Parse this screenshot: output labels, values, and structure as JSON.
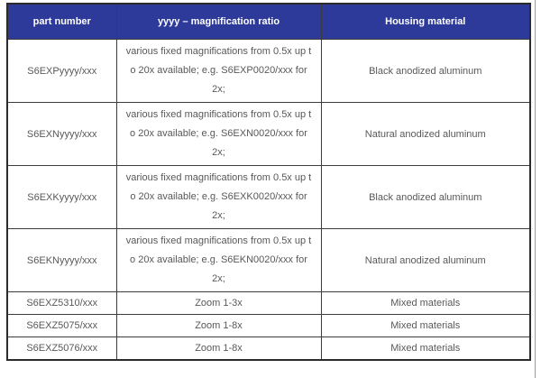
{
  "colors": {
    "header_bg": "#2e3a9a",
    "header_text": "#ffffff",
    "body_text": "#58585a",
    "border": "#3c3c3c"
  },
  "table": {
    "headers": {
      "part_number": "part number",
      "magnification": "yyyy – magnification ratio",
      "material": "Housing material"
    },
    "rows": [
      {
        "part": "S6EXPyyyy/xxx",
        "magnification": "various fixed magnifications from 0.5x up t\no 20x available;  e.g. S6EXP0020/xxx for\n2x;",
        "material": "Black anodized aluminum"
      },
      {
        "part": "S6EXNyyyy/xxx",
        "magnification": "various fixed magnifications from 0.5x up t\no 20x available;  e.g. S6EXN0020/xxx for\n2x;",
        "material": "Natural anodized aluminum"
      },
      {
        "part": "S6EXKyyyy/xxx",
        "magnification": "various fixed magnifications from 0.5x up t\no 20x available;  e.g. S6EXK0020/xxx for\n2x;",
        "material": "Black anodized aluminum"
      },
      {
        "part": "S6EKNyyyy/xxx",
        "magnification": "various fixed magnifications from 0.5x up t\no 20x available; e.g.  S6EKN0020/xxx for\n2x;",
        "material": "Natural anodized aluminum"
      },
      {
        "part": "S6EXZ5310/xxx",
        "magnification": "Zoom 1-3x",
        "material": "Mixed materials"
      },
      {
        "part": "S6EXZ5075/xxx",
        "magnification": "Zoom 1-8x",
        "material": "Mixed materials"
      },
      {
        "part": "S6EXZ5076/xxx",
        "magnification": "Zoom 1-8x",
        "material": "Mixed materials"
      }
    ]
  }
}
